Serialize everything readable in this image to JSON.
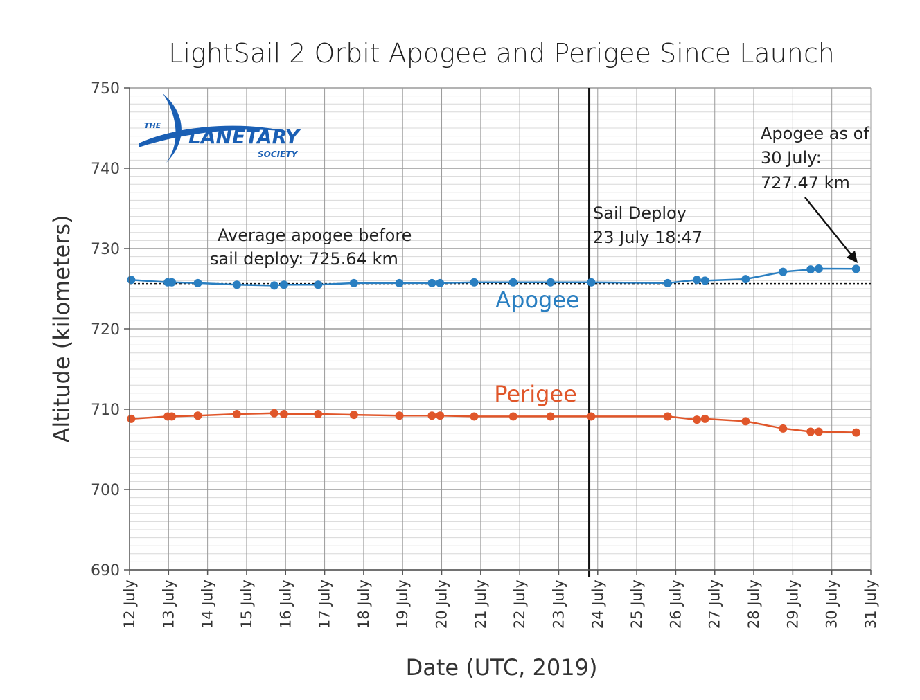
{
  "chart_data": {
    "type": "line",
    "title": "LightSail 2 Orbit Apogee and Perigee Since Launch",
    "xlabel": "Date (UTC, 2019)",
    "ylabel": "Altitude (kilometers)",
    "ylim": [
      690,
      750
    ],
    "yticks": [
      "690",
      "700",
      "710",
      "720",
      "730",
      "740",
      "750"
    ],
    "xlim": [
      "2019-07-12",
      "2019-07-31"
    ],
    "xticks": [
      "12 July",
      "13 July",
      "14 July",
      "15 July",
      "16 July",
      "17 July",
      "18 July",
      "19 July",
      "20 July",
      "21 July",
      "22 July",
      "23 July",
      "24 July",
      "25 July",
      "26 July",
      "27 July",
      "28 July",
      "29 July",
      "30 July",
      "31 July"
    ],
    "grid": true,
    "series": [
      {
        "name": "Apogee",
        "color": "#2a7fc1",
        "x": [
          "2019-07-12 01:00",
          "2019-07-12 23:30",
          "2019-07-13 02:00",
          "2019-07-13 18:00",
          "2019-07-14 18:00",
          "2019-07-15 17:00",
          "2019-07-15 23:00",
          "2019-07-16 20:00",
          "2019-07-17 18:00",
          "2019-07-18 22:00",
          "2019-07-19 18:00",
          "2019-07-19 23:00",
          "2019-07-20 20:00",
          "2019-07-21 20:00",
          "2019-07-22 19:00",
          "2019-07-23 20:00",
          "2019-07-25 19:00",
          "2019-07-26 13:00",
          "2019-07-26 18:00",
          "2019-07-27 19:00",
          "2019-07-28 18:00",
          "2019-07-29 11:00",
          "2019-07-29 16:00",
          "2019-07-30 15:00"
        ],
        "y": [
          726.1,
          725.8,
          725.8,
          725.7,
          725.5,
          725.4,
          725.5,
          725.5,
          725.7,
          725.7,
          725.7,
          725.7,
          725.8,
          725.8,
          725.8,
          725.8,
          725.7,
          726.1,
          726.0,
          726.2,
          727.1,
          727.4,
          727.5,
          727.47
        ]
      },
      {
        "name": "Perigee",
        "color": "#e0562a",
        "x": [
          "2019-07-12 01:00",
          "2019-07-12 23:30",
          "2019-07-13 02:00",
          "2019-07-13 18:00",
          "2019-07-14 18:00",
          "2019-07-15 17:00",
          "2019-07-15 23:00",
          "2019-07-16 20:00",
          "2019-07-17 18:00",
          "2019-07-18 22:00",
          "2019-07-19 18:00",
          "2019-07-19 23:00",
          "2019-07-20 20:00",
          "2019-07-21 20:00",
          "2019-07-22 19:00",
          "2019-07-23 20:00",
          "2019-07-25 19:00",
          "2019-07-26 13:00",
          "2019-07-26 18:00",
          "2019-07-27 19:00",
          "2019-07-28 18:00",
          "2019-07-29 11:00",
          "2019-07-29 16:00",
          "2019-07-30 15:00"
        ],
        "y": [
          708.8,
          709.1,
          709.1,
          709.2,
          709.4,
          709.5,
          709.4,
          709.4,
          709.3,
          709.2,
          709.2,
          709.2,
          709.1,
          709.1,
          709.1,
          709.1,
          709.1,
          708.7,
          708.8,
          708.5,
          707.6,
          707.2,
          707.2,
          707.1
        ]
      }
    ],
    "average_apogee": 725.64,
    "deploy_x": "2019-07-23 18:47"
  },
  "annotations": {
    "average": {
      "line1": "Average apogee before",
      "line2": "sail deploy: 725.64 km"
    },
    "deploy": {
      "line1": "Sail Deploy",
      "line2": "23 July 18:47"
    },
    "apogee_now": {
      "line1": "Apogee as of",
      "line2": "30 July:",
      "line3": "727.47 km"
    }
  },
  "logo": {
    "the": "THE",
    "name": "LANETARY",
    "sub": "SOCIETY"
  },
  "colors": {
    "apogee": "#2a7fc1",
    "perigee": "#e0562a",
    "grid_major": "#9a9a9a",
    "grid_minor": "#d8d8d8"
  }
}
